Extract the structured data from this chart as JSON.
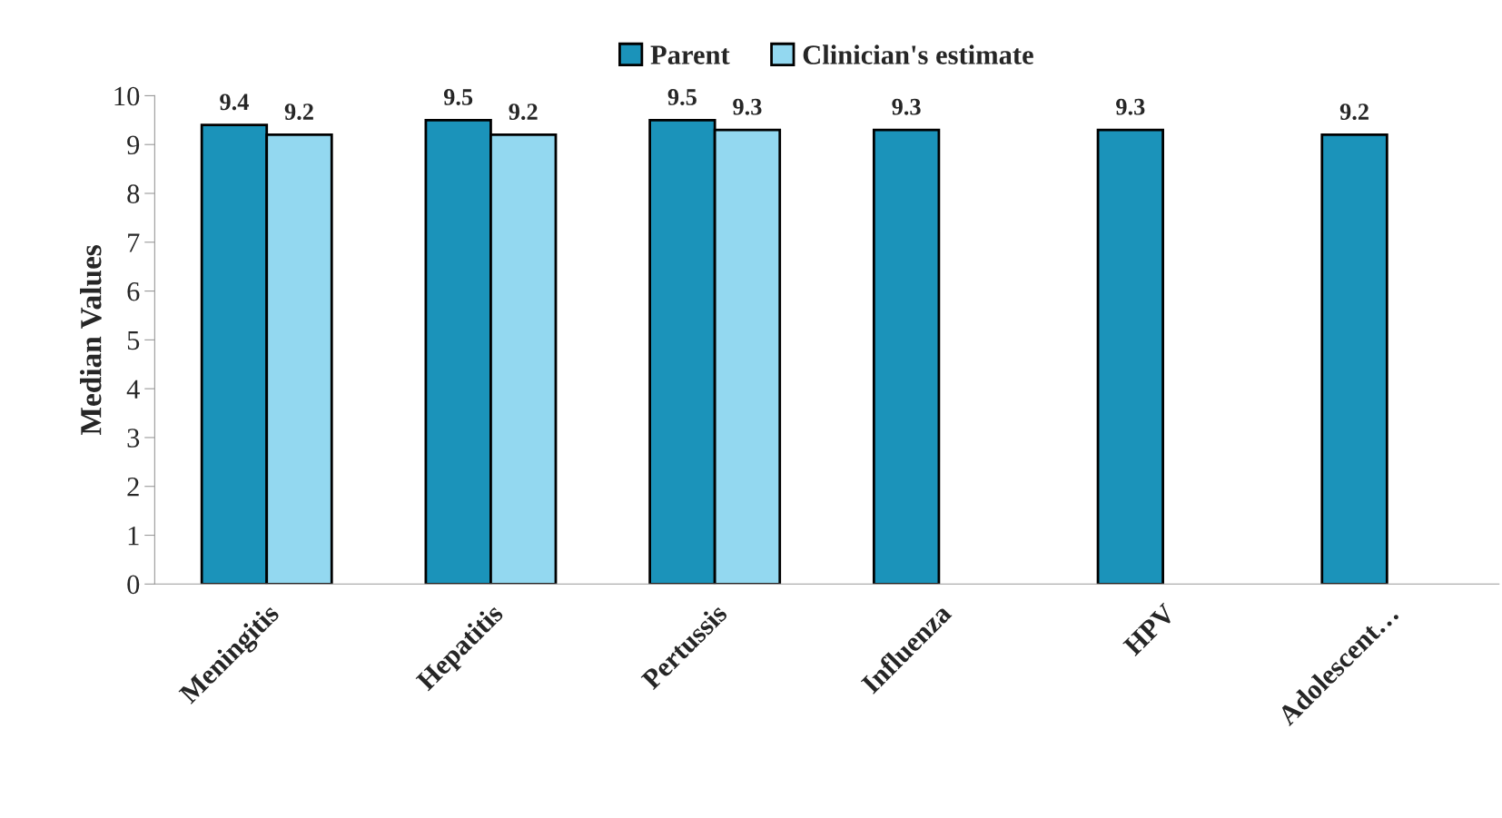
{
  "chart_data": {
    "type": "bar",
    "ylabel": "Median Values",
    "categories": [
      "Meningitis",
      "Hepatitis",
      "Pertussis",
      "Influenza",
      "HPV",
      "Adolescent…"
    ],
    "series": [
      {
        "name": "Parent",
        "color": "#1b93ba",
        "values": [
          9.4,
          9.5,
          9.5,
          9.3,
          9.3,
          9.2
        ]
      },
      {
        "name": "Clinician's estimate",
        "color": "#93d8f0",
        "values": [
          9.2,
          9.2,
          9.3,
          null,
          null,
          null
        ]
      }
    ],
    "ylim": [
      0,
      10
    ],
    "yticks": [
      0,
      1,
      2,
      3,
      4,
      5,
      6,
      7,
      8,
      9,
      10
    ],
    "data_labels": true,
    "legend": "top",
    "grid": false
  }
}
